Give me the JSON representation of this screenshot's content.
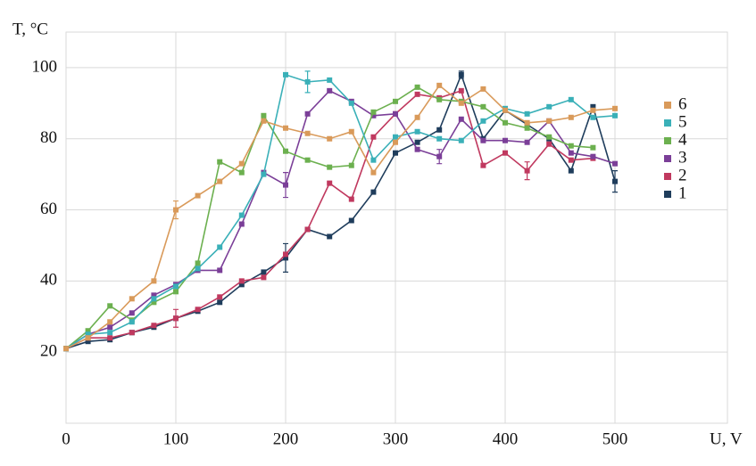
{
  "chart_data": {
    "type": "line",
    "y_label": "T, °C",
    "x_label": "U, V",
    "x": [
      0,
      20,
      40,
      60,
      80,
      100,
      120,
      140,
      160,
      180,
      200,
      220,
      240,
      260,
      280,
      300,
      320,
      340,
      360,
      380,
      400,
      420,
      440,
      460,
      480,
      500
    ],
    "xlim": [
      0,
      600
    ],
    "ylim": [
      0,
      110
    ],
    "xticks": [
      0,
      100,
      200,
      300,
      400,
      500
    ],
    "yticks": [
      20,
      40,
      60,
      80,
      100
    ],
    "grid": true,
    "legend": "right",
    "legend_order": "reversed",
    "series": [
      {
        "name": "1",
        "color": "#1f3d5c",
        "values": [
          21,
          23,
          23.5,
          25.5,
          27,
          29.5,
          31.5,
          34,
          39,
          42.5,
          46.5,
          54.5,
          52.5,
          57,
          65,
          76,
          79,
          82.5,
          98,
          80,
          88,
          84,
          80,
          71,
          89,
          68
        ],
        "errors": [
          null,
          null,
          null,
          null,
          null,
          null,
          null,
          null,
          null,
          null,
          4,
          null,
          null,
          null,
          null,
          null,
          null,
          null,
          1,
          null,
          null,
          null,
          null,
          null,
          null,
          3
        ]
      },
      {
        "name": "2",
        "color": "#c0395f",
        "values": [
          21,
          24,
          24,
          25.5,
          27.5,
          29.5,
          32,
          35.5,
          40,
          41,
          47.5,
          54.5,
          67.5,
          63,
          80.5,
          87,
          92.5,
          91.5,
          93.5,
          72.5,
          76,
          71,
          78.5,
          74,
          74.5,
          null
        ],
        "errors": [
          null,
          null,
          null,
          null,
          null,
          2.5,
          null,
          null,
          null,
          null,
          null,
          null,
          null,
          null,
          null,
          null,
          null,
          null,
          null,
          null,
          null,
          2.5,
          null,
          null,
          null,
          null
        ]
      },
      {
        "name": "3",
        "color": "#7b3f98",
        "values": [
          21,
          25,
          27,
          31,
          36,
          39,
          43,
          43,
          56,
          70.5,
          67,
          87,
          93.5,
          90.5,
          86.5,
          87,
          77,
          75,
          85.5,
          79.5,
          79.5,
          79,
          85,
          76,
          75,
          73
        ],
        "errors": [
          null,
          null,
          null,
          null,
          null,
          null,
          null,
          null,
          null,
          null,
          3.5,
          null,
          null,
          null,
          null,
          null,
          null,
          2,
          null,
          null,
          null,
          null,
          null,
          null,
          null,
          null
        ]
      },
      {
        "name": "4",
        "color": "#6cb04f",
        "values": [
          21,
          26,
          33,
          29,
          34,
          37,
          45,
          73.5,
          70.5,
          86.5,
          76.5,
          74,
          72,
          72.5,
          87.5,
          90.5,
          94.5,
          91,
          90.5,
          89,
          84.5,
          83,
          80.5,
          78,
          77.5,
          null
        ],
        "errors": [
          null,
          null,
          null,
          null,
          null,
          null,
          null,
          null,
          null,
          null,
          null,
          null,
          null,
          null,
          null,
          null,
          null,
          null,
          null,
          null,
          null,
          null,
          null,
          null,
          null,
          null
        ]
      },
      {
        "name": "5",
        "color": "#3ab0b8",
        "values": [
          21,
          25,
          25.5,
          28.5,
          35,
          38.5,
          43.5,
          49.5,
          58.5,
          70,
          98,
          96,
          96.5,
          90,
          74,
          80.5,
          82,
          80,
          79.5,
          85,
          88.5,
          87,
          89,
          91,
          86,
          86.5
        ],
        "errors": [
          null,
          null,
          null,
          null,
          null,
          null,
          null,
          null,
          null,
          null,
          null,
          3,
          null,
          null,
          null,
          null,
          null,
          null,
          null,
          null,
          null,
          null,
          null,
          null,
          null,
          null
        ]
      },
      {
        "name": "6",
        "color": "#d99a5a",
        "values": [
          21,
          24,
          28.5,
          35,
          40,
          60,
          64,
          68,
          73,
          85,
          83,
          81.5,
          80,
          82,
          70.5,
          79,
          86,
          95,
          90,
          94,
          88,
          84.5,
          85,
          86,
          88,
          88.5
        ],
        "errors": [
          null,
          null,
          null,
          null,
          null,
          2.5,
          null,
          null,
          null,
          null,
          null,
          null,
          null,
          null,
          null,
          null,
          null,
          null,
          null,
          null,
          null,
          null,
          null,
          null,
          null,
          null
        ]
      }
    ]
  }
}
